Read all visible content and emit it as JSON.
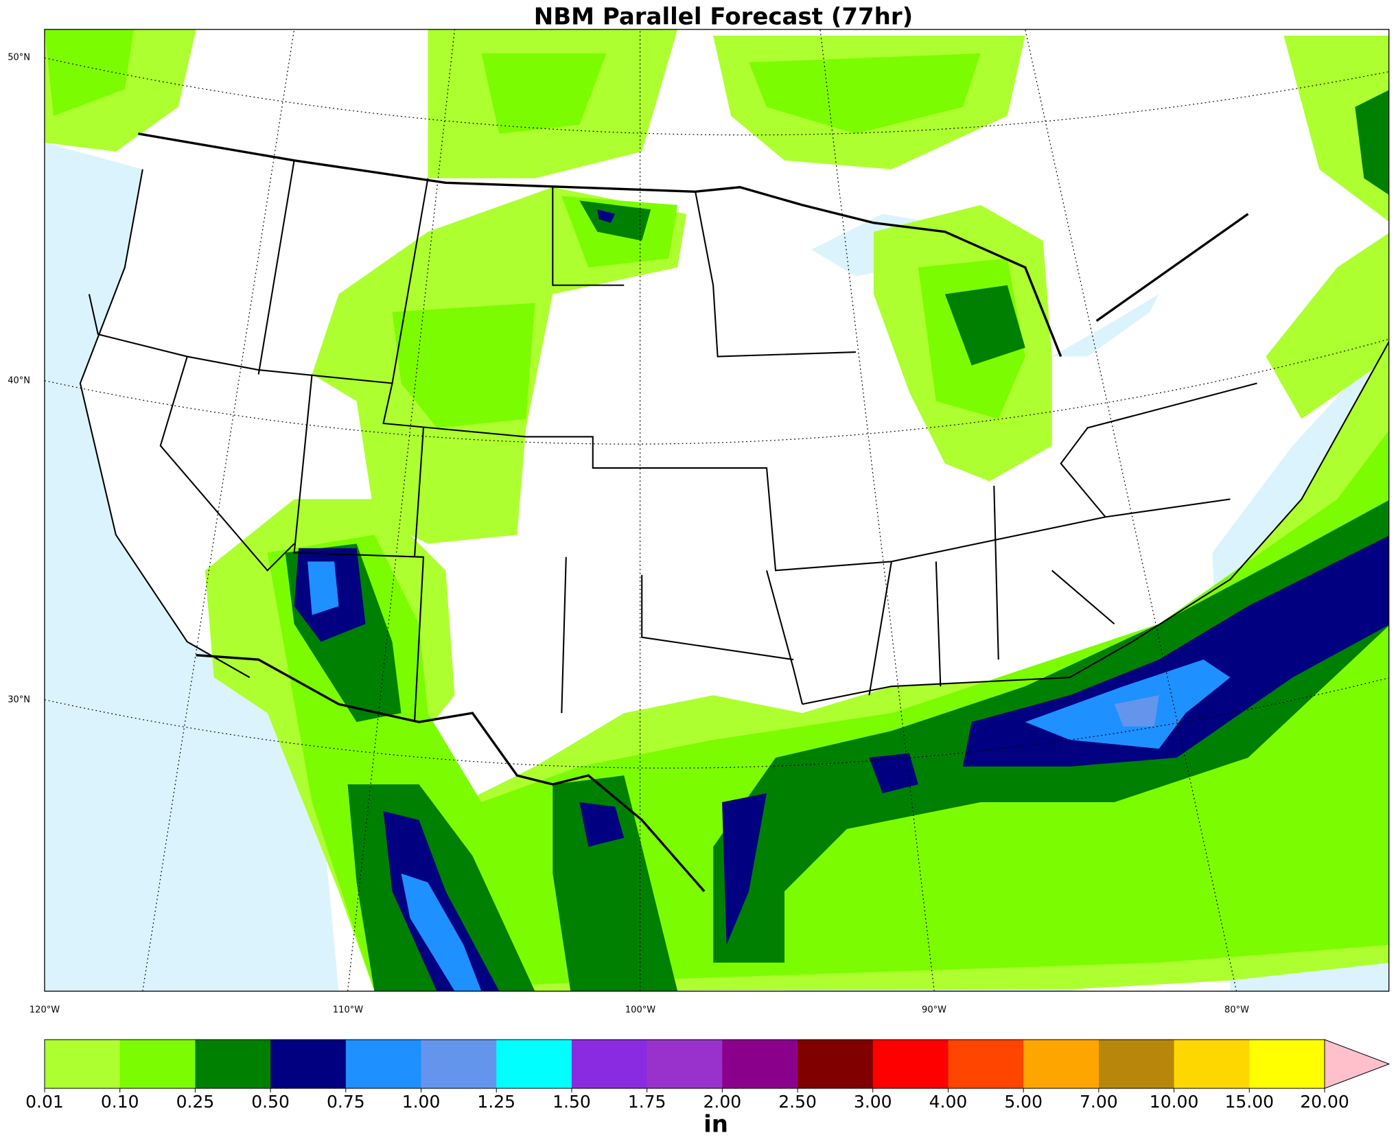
{
  "title": "NBM Parallel Forecast (77hr)",
  "latitude_labels": [
    "50°N",
    "40°N",
    "30°N"
  ],
  "longitude_labels": [
    "120°W",
    "110°W",
    "100°W",
    "90°W",
    "80°W"
  ],
  "colorbar": {
    "ticks": [
      "0.01",
      "0.10",
      "0.25",
      "0.50",
      "0.75",
      "1.00",
      "1.25",
      "1.50",
      "1.75",
      "2.00",
      "2.50",
      "3.00",
      "4.00",
      "5.00",
      "7.00",
      "10.00",
      "15.00",
      "20.00"
    ],
    "colors": [
      "#adff2f",
      "#7cfc00",
      "#008000",
      "#000080",
      "#1e90ff",
      "#6495ed",
      "#00ffff",
      "#8a2be2",
      "#9932cc",
      "#8b008b",
      "#800000",
      "#ff0000",
      "#ff4500",
      "#ffa500",
      "#b8860b",
      "#ffd700",
      "#ffff00"
    ],
    "extend_color": "#ffc0cb",
    "unit": "in"
  }
}
